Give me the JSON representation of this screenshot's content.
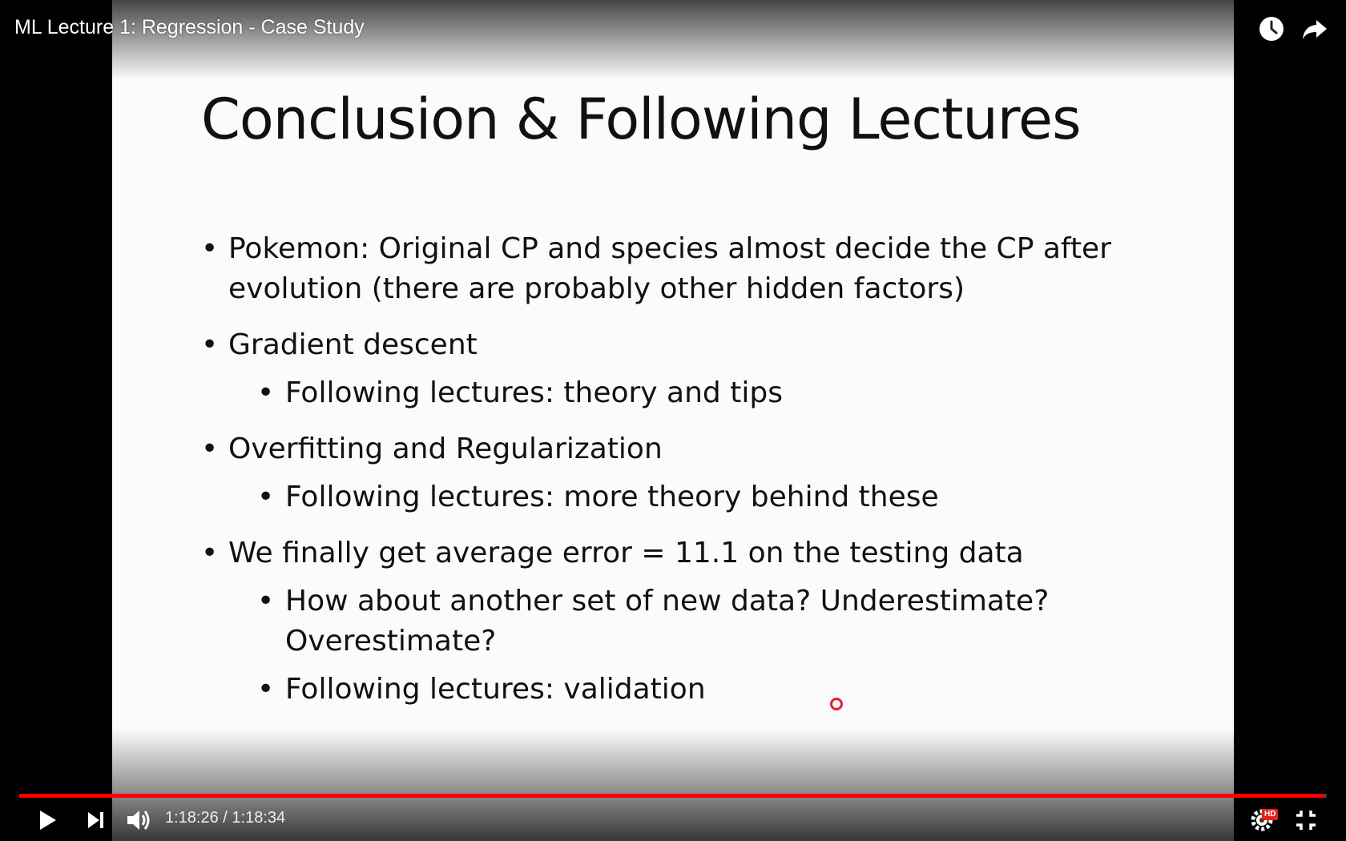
{
  "player": {
    "video_title": "ML Lecture 1: Regression - Case Study",
    "current_time": "1:18:26",
    "time_separator": "/",
    "duration": "1:18:34",
    "progress_fraction": 0.998,
    "quality_badge": "HD",
    "accent_color": "#ff0000",
    "icons": [
      "watch-later-icon",
      "share-icon",
      "play-icon",
      "next-icon",
      "volume-icon",
      "settings-icon",
      "exit-fullscreen-icon"
    ]
  },
  "slide": {
    "title": "Conclusion & Following Lectures",
    "bullets": [
      {
        "text": "Pokemon: Original CP and species almost decide the CP after evolution (there are probably other hidden factors)",
        "sub": []
      },
      {
        "text": "Gradient descent",
        "sub": [
          "Following lectures: theory and tips"
        ]
      },
      {
        "text": "Overfitting and Regularization",
        "sub": [
          "Following lectures: more theory behind these"
        ]
      },
      {
        "text": "We finally get average error = 11.1 on the testing data",
        "sub": [
          "How about another set of new data? Underestimate? Overestimate?",
          "Following lectures: validation"
        ]
      }
    ]
  }
}
